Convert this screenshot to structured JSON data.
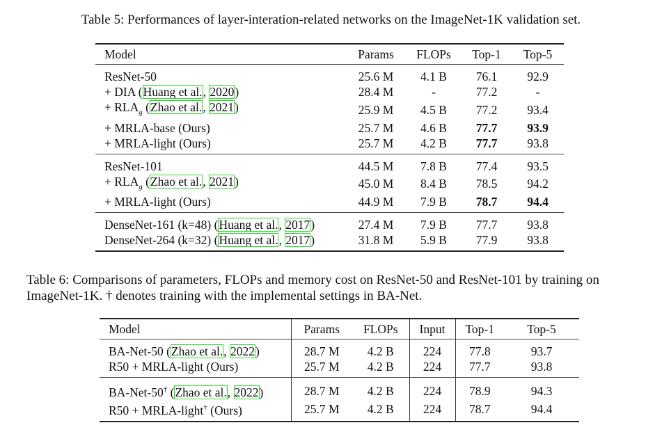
{
  "table5": {
    "caption": "Table 5: Performances of layer-interation-related networks on the ImageNet-1K validation set.",
    "headers": [
      "Model",
      "Params",
      "FLOPs",
      "Top-1",
      "Top-5"
    ],
    "groups": [
      [
        {
          "pre": "ResNet-50",
          "cells": [
            "25.6 M",
            "4.1 B",
            "76.1",
            "92.9"
          ],
          "bold": []
        },
        {
          "pre": "+ DIA (",
          "cite_a": "Huang et al.",
          "sep": ", ",
          "cite_b": "2020",
          "post": ")",
          "cells": [
            "28.4 M",
            "-",
            "77.2",
            "-"
          ],
          "bold": []
        },
        {
          "pre": "+ RLA",
          "sub": "g",
          "mid": " (",
          "cite_a": "Zhao et al.",
          "sep": ", ",
          "cite_b": "2021",
          "post": ")",
          "cells": [
            "25.9 M",
            "4.5 B",
            "77.2",
            "93.4"
          ],
          "bold": []
        },
        {
          "pre": "+ MRLA-base (Ours)",
          "cells": [
            "25.7 M",
            "4.6 B",
            "77.7",
            "93.9"
          ],
          "bold": [
            2,
            3
          ]
        },
        {
          "pre": "+ MRLA-light (Ours)",
          "cells": [
            "25.7 M",
            "4.2 B",
            "77.7",
            "93.8"
          ],
          "bold": [
            2
          ]
        }
      ],
      [
        {
          "pre": "ResNet-101",
          "cells": [
            "44.5 M",
            "7.8 B",
            "77.4",
            "93.5"
          ],
          "bold": []
        },
        {
          "pre": "+ RLA",
          "sub": "g",
          "mid": " (",
          "cite_a": "Zhao et al.",
          "sep": ", ",
          "cite_b": "2021",
          "post": ")",
          "cells": [
            "45.0 M",
            "8.4 B",
            "78.5",
            "94.2"
          ],
          "bold": []
        },
        {
          "pre": "+ MRLA-light (Ours)",
          "cells": [
            "44.9 M",
            "7.9 B",
            "78.7",
            "94.4"
          ],
          "bold": [
            2,
            3
          ]
        }
      ],
      [
        {
          "pre": "DenseNet-161 (k=48) (",
          "cite_a": "Huang et al.",
          "sep": ", ",
          "cite_b": "2017",
          "post": ")",
          "cells": [
            "27.4 M",
            "7.9 B",
            "77.7",
            "93.8"
          ],
          "bold": []
        },
        {
          "pre": "DenseNet-264 (k=32) (",
          "cite_a": "Huang et al.",
          "sep": ", ",
          "cite_b": "2017",
          "post": ")",
          "cells": [
            "31.8 M",
            "5.9 B",
            "77.9",
            "93.8"
          ],
          "bold": []
        }
      ]
    ]
  },
  "table6": {
    "caption": "Table 6: Comparisons of parameters, FLOPs and memory cost on ResNet-50 and ResNet-101 by training on ImageNet-1K. † denotes training with the implemental settings in BA-Net.",
    "headers": [
      "Model",
      "Params",
      "FLOPs",
      "Input",
      "Top-1",
      "Top-5"
    ],
    "groups": [
      [
        {
          "pre": "BA-Net-50 (",
          "cite_a": "Zhao et al.",
          "sep": ", ",
          "cite_b": "2022",
          "post": ")",
          "cells": [
            "28.7 M",
            "4.2 B",
            "224",
            "77.8",
            "93.7"
          ],
          "bold": []
        },
        {
          "pre": "R50 + MRLA-light (Ours)",
          "cells": [
            "25.7 M",
            "4.2 B",
            "224",
            "77.7",
            "93.8"
          ],
          "bold": []
        }
      ],
      [
        {
          "pre": "BA-Net-50",
          "sup": "†",
          "mid": " (",
          "cite_a": "Zhao et al.",
          "sep": ", ",
          "cite_b": "2022",
          "post": ")",
          "cells": [
            "28.7 M",
            "4.2 B",
            "224",
            "78.9",
            "94.3"
          ],
          "bold": []
        },
        {
          "pre": "R50 + MRLA-light",
          "sup": "†",
          "mid": " (Ours)",
          "cells": [
            "25.7 M",
            "4.2 B",
            "224",
            "78.7",
            "94.4"
          ],
          "bold": []
        }
      ]
    ]
  }
}
